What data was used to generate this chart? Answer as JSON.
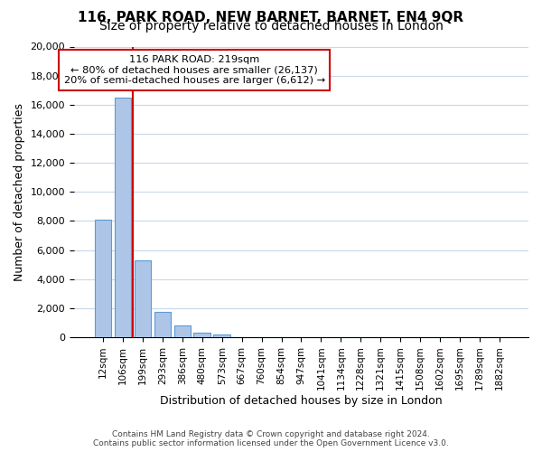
{
  "title1": "116, PARK ROAD, NEW BARNET, BARNET, EN4 9QR",
  "title2": "Size of property relative to detached houses in London",
  "xlabel": "Distribution of detached houses by size in London",
  "ylabel": "Number of detached properties",
  "bar_labels": [
    "12sqm",
    "106sqm",
    "199sqm",
    "293sqm",
    "386sqm",
    "480sqm",
    "573sqm",
    "667sqm",
    "760sqm",
    "854sqm",
    "947sqm",
    "1041sqm",
    "1134sqm",
    "1228sqm",
    "1321sqm",
    "1415sqm",
    "1508sqm",
    "1602sqm",
    "1695sqm",
    "1789sqm",
    "1882sqm"
  ],
  "bar_values": [
    8100,
    16500,
    5300,
    1750,
    800,
    280,
    200,
    0,
    0,
    0,
    0,
    0,
    0,
    0,
    0,
    0,
    0,
    0,
    0,
    0,
    0
  ],
  "bar_color": "#adc6e8",
  "bar_edge_color": "#5b9bd5",
  "vline_pos": 1.5,
  "marker_label": "116 PARK ROAD: 219sqm",
  "annotation_line1": "← 80% of detached houses are smaller (26,137)",
  "annotation_line2": "20% of semi-detached houses are larger (6,612) →",
  "vline_color": "#cc0000",
  "annotation_box_edge_color": "#cc0000",
  "ylim": [
    0,
    20000
  ],
  "yticks": [
    0,
    2000,
    4000,
    6000,
    8000,
    10000,
    12000,
    14000,
    16000,
    18000,
    20000
  ],
  "footer1": "Contains HM Land Registry data © Crown copyright and database right 2024.",
  "footer2": "Contains public sector information licensed under the Open Government Licence v3.0.",
  "bg_color": "#ffffff",
  "grid_color": "#c8d8ea",
  "title_fontsize": 11,
  "subtitle_fontsize": 10
}
